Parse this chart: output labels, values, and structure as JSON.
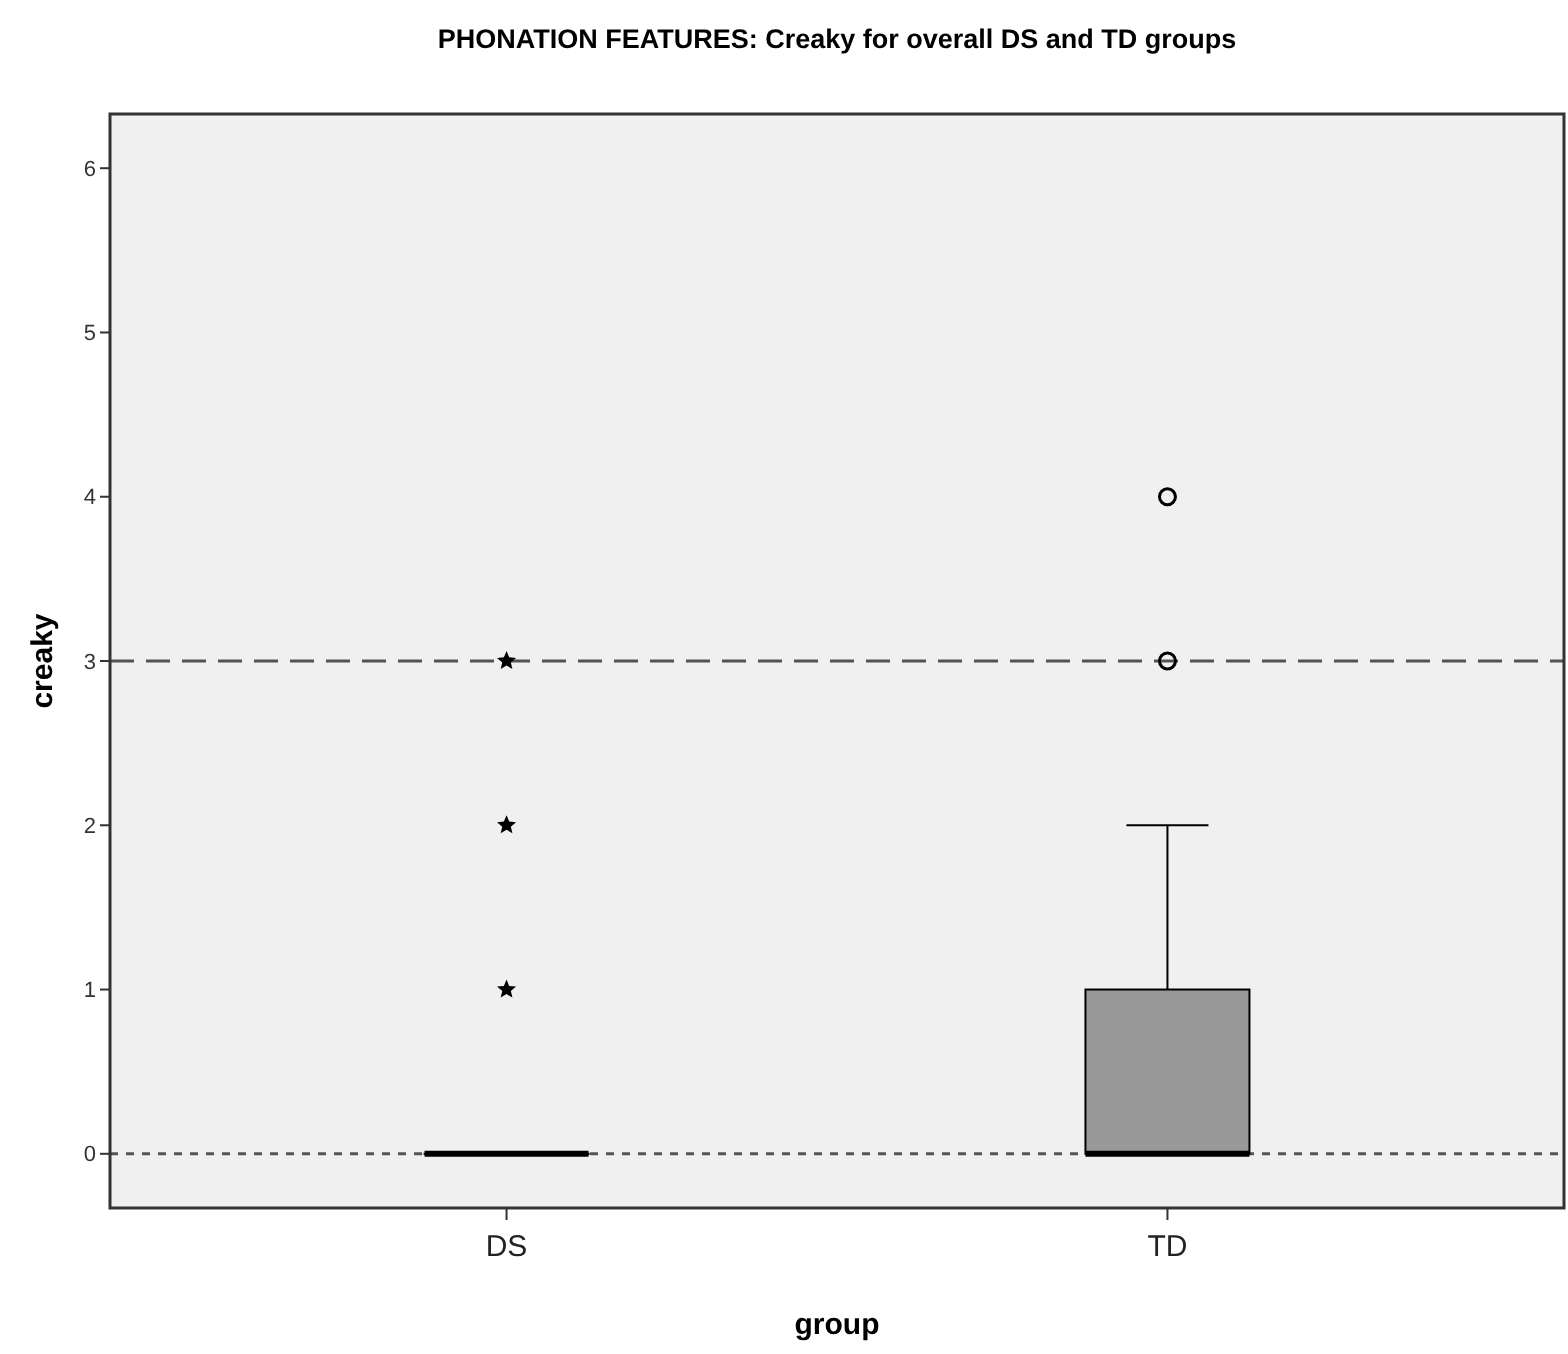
{
  "chart_data": {
    "type": "box",
    "title": "PHONATION FEATURES: Creaky for overall DS and TD groups",
    "xlabel": "group",
    "ylabel": "creaky",
    "categories": [
      "DS",
      "TD"
    ],
    "series": [
      {
        "color": "#999999",
        "marker": "star",
        "boxes": [
          {
            "low": 0,
            "q1": 0,
            "median": 0,
            "q3": 0,
            "high": 0,
            "outliers": [
              1,
              2,
              3
            ]
          },
          null
        ]
      },
      {
        "color": "#999999",
        "marker": "circle",
        "boxes": [
          null,
          {
            "low": 0,
            "q1": 0,
            "median": 0,
            "q3": 1,
            "high": 2,
            "outliers": [
              3,
              4
            ]
          }
        ]
      }
    ],
    "ylim": [
      -0.33,
      6.33
    ],
    "yticks": [
      0,
      1,
      2,
      3,
      4,
      5,
      6
    ],
    "ref_lines": [
      {
        "axis": "y",
        "value": 3,
        "line_style": "dashed",
        "color": "#555555"
      },
      {
        "axis": "y",
        "value": 0,
        "line_style": "dotted",
        "color": "#555555"
      }
    ]
  }
}
